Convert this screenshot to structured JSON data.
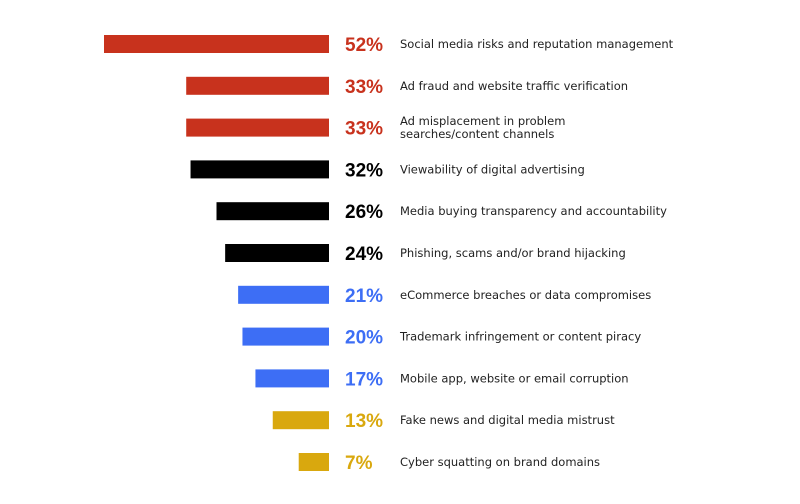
{
  "chart_data": {
    "type": "bar",
    "orientation": "horizontal",
    "bars_grow": "leftward",
    "title": "",
    "xlabel": "",
    "ylabel": "",
    "xlim": [
      0,
      52
    ],
    "grid": false,
    "legend": "none",
    "categories": [
      [
        "Social media risks and reputation management"
      ],
      [
        "Ad fraud and website traffic verification"
      ],
      [
        "Ad misplacement in problem",
        "searches/content channels"
      ],
      [
        "Viewability of digital advertising"
      ],
      [
        "Media buying transparency and accountability"
      ],
      [
        "Phishing, scams and/or brand hijacking"
      ],
      [
        "eCommerce breaches or data compromises"
      ],
      [
        "Trademark infringement or content piracy"
      ],
      [
        "Mobile app, website or email corruption"
      ],
      [
        "Fake news and digital media mistrust"
      ],
      [
        "Cyber squatting on brand domains"
      ]
    ],
    "values": [
      52,
      33,
      33,
      32,
      26,
      24,
      21,
      20,
      17,
      13,
      7
    ],
    "value_labels": [
      "52%",
      "33%",
      "33%",
      "32%",
      "26%",
      "24%",
      "21%",
      "20%",
      "17%",
      "13%",
      "7%"
    ],
    "bar_colors": [
      "#c8321d",
      "#c8321d",
      "#c8321d",
      "#000000",
      "#000000",
      "#000000",
      "#3d6ef5",
      "#3d6ef5",
      "#3d6ef5",
      "#d9a80e",
      "#d9a80e"
    ],
    "label_colors": [
      "#c8321d",
      "#c8321d",
      "#c8321d",
      "#000000",
      "#000000",
      "#000000",
      "#3d6ef5",
      "#3d6ef5",
      "#3d6ef5",
      "#d9a80e",
      "#d9a80e"
    ]
  }
}
